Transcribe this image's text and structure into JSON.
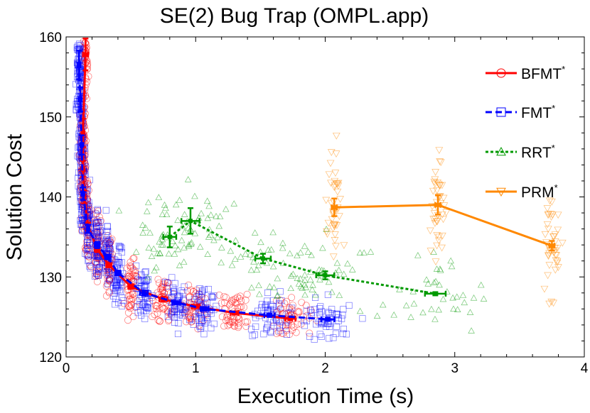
{
  "chart_data": {
    "type": "scatter",
    "title": "SE(2) Bug Trap (OMPL.app)",
    "xlabel": "Execution Time (s)",
    "ylabel": "Solution Cost",
    "xlim": [
      0,
      4
    ],
    "ylim": [
      120,
      160
    ],
    "xticks": [
      "0",
      "1",
      "2",
      "3",
      "4"
    ],
    "yticks": [
      "120",
      "130",
      "140",
      "150",
      "160"
    ],
    "grid": false,
    "legend_position": "top-right",
    "series": [
      {
        "name": "BFMT",
        "name_sup": "*",
        "color": "#ff0000",
        "marker": "circle",
        "line": "solid",
        "mean_points": [
          {
            "x": 0.15,
            "y": 157.8,
            "yerr": 2.0,
            "xerr": 0.02
          },
          {
            "x": 0.13,
            "y": 148.0,
            "yerr": 1.8,
            "xerr": 0.01
          },
          {
            "x": 0.13,
            "y": 143.5,
            "yerr": 1.0,
            "xerr": 0.01
          },
          {
            "x": 0.14,
            "y": 140.0,
            "yerr": 0.8,
            "xerr": 0.01
          },
          {
            "x": 0.17,
            "y": 136.3,
            "yerr": 0.5,
            "xerr": 0.01
          },
          {
            "x": 0.24,
            "y": 133.5,
            "yerr": 0.4,
            "xerr": 0.02
          },
          {
            "x": 0.33,
            "y": 131.5,
            "yerr": 0.3,
            "xerr": 0.02
          },
          {
            "x": 0.5,
            "y": 128.8,
            "yerr": 0.3,
            "xerr": 0.02
          },
          {
            "x": 0.75,
            "y": 127.2,
            "yerr": 0.3,
            "xerr": 0.03
          },
          {
            "x": 1.0,
            "y": 126.3,
            "yerr": 0.2,
            "xerr": 0.03
          },
          {
            "x": 1.3,
            "y": 125.5,
            "yerr": 0.2,
            "xerr": 0.03
          },
          {
            "x": 1.73,
            "y": 124.8,
            "yerr": 0.2,
            "xerr": 0.04
          }
        ]
      },
      {
        "name": "FMT",
        "name_sup": "*",
        "color": "#0000ff",
        "marker": "square",
        "line": "dashed",
        "mean_points": [
          {
            "x": 0.1,
            "y": 156.5,
            "yerr": 1.8,
            "xerr": 0.01
          },
          {
            "x": 0.11,
            "y": 152.2,
            "yerr": 1.5,
            "xerr": 0.01
          },
          {
            "x": 0.12,
            "y": 146.5,
            "yerr": 1.2,
            "xerr": 0.01
          },
          {
            "x": 0.13,
            "y": 140.4,
            "yerr": 0.8,
            "xerr": 0.01
          },
          {
            "x": 0.17,
            "y": 136.0,
            "yerr": 0.5,
            "xerr": 0.01
          },
          {
            "x": 0.24,
            "y": 134.0,
            "yerr": 0.4,
            "xerr": 0.02
          },
          {
            "x": 0.32,
            "y": 132.5,
            "yerr": 0.3,
            "xerr": 0.02
          },
          {
            "x": 0.4,
            "y": 130.5,
            "yerr": 0.3,
            "xerr": 0.02
          },
          {
            "x": 0.6,
            "y": 128.0,
            "yerr": 0.3,
            "xerr": 0.03
          },
          {
            "x": 0.85,
            "y": 126.8,
            "yerr": 0.2,
            "xerr": 0.03
          },
          {
            "x": 1.07,
            "y": 126.0,
            "yerr": 0.2,
            "xerr": 0.03
          },
          {
            "x": 1.57,
            "y": 125.2,
            "yerr": 0.2,
            "xerr": 0.04
          },
          {
            "x": 2.02,
            "y": 124.7,
            "yerr": 0.2,
            "xerr": 0.05
          }
        ]
      },
      {
        "name": "RRT",
        "name_sup": "*",
        "color": "#009900",
        "marker": "triangle-up",
        "line": "dotted",
        "mean_points": [
          {
            "x": 0.8,
            "y": 135.0,
            "yerr": 1.3,
            "xerr": 0.05
          },
          {
            "x": 0.96,
            "y": 137.0,
            "yerr": 1.6,
            "xerr": 0.07
          },
          {
            "x": 1.52,
            "y": 132.3,
            "yerr": 0.6,
            "xerr": 0.06
          },
          {
            "x": 2.0,
            "y": 130.2,
            "yerr": 0.5,
            "xerr": 0.07
          },
          {
            "x": 2.85,
            "y": 127.9,
            "yerr": 0.2,
            "xerr": 0.08
          }
        ]
      },
      {
        "name": "PRM",
        "name_sup": "*",
        "color": "#ff8800",
        "marker": "triangle-down",
        "line": "solid",
        "mean_points": [
          {
            "x": 2.07,
            "y": 138.7,
            "yerr": 1.1,
            "xerr": 0.02
          },
          {
            "x": 2.87,
            "y": 139.0,
            "yerr": 1.2,
            "xerr": 0.02
          },
          {
            "x": 3.75,
            "y": 133.9,
            "yerr": 0.6,
            "xerr": 0.02
          }
        ]
      }
    ]
  }
}
